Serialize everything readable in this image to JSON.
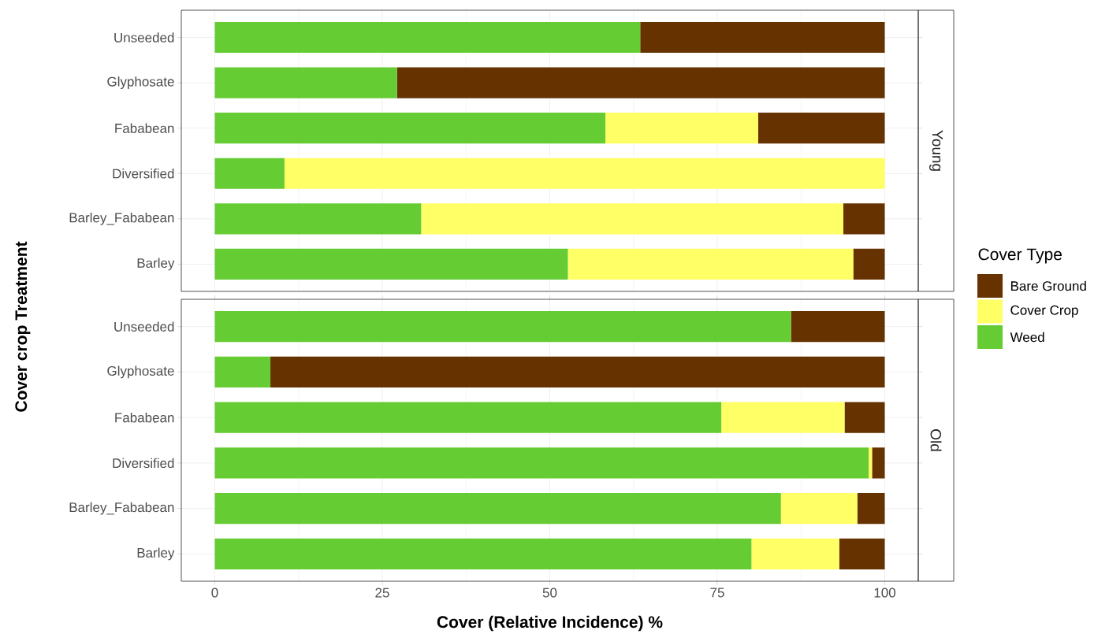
{
  "chart_data": [
    {
      "type": "bar",
      "orientation": "horizontal",
      "stacked": true,
      "annotations": [
        "Young"
      ],
      "ylabel": "Cover crop Treatment",
      "legend_title": "Cover Type",
      "legend": "right",
      "grid": true,
      "tick_labels": "y",
      "categories": [
        "Unseeded",
        "Glyphosate",
        "Fababean",
        "Diversified",
        "Barley_Fababean",
        "Barley"
      ],
      "xlim": [
        -5,
        105
      ],
      "xticks": [
        0,
        25,
        50,
        75,
        100
      ],
      "series": [
        {
          "name": "Weed",
          "color": "#66cc33",
          "values": [
            63.5,
            27.2,
            58.3,
            10.4,
            30.8,
            52.7
          ]
        },
        {
          "name": "Cover Crop",
          "color": "#ffff66",
          "values": [
            0,
            0,
            22.8,
            89.6,
            63.0,
            42.6
          ]
        },
        {
          "name": "Bare Ground",
          "color": "#663300",
          "values": [
            36.5,
            72.8,
            18.9,
            0,
            6.2,
            4.7
          ]
        }
      ]
    },
    {
      "type": "bar",
      "orientation": "horizontal",
      "stacked": true,
      "annotations": [
        "Old"
      ],
      "xlabel": "Cover (Relative Incidence) %",
      "grid": true,
      "categories": [
        "Unseeded",
        "Glyphosate",
        "Fababean",
        "Diversified",
        "Barley_Fababean",
        "Barley"
      ],
      "xlim": [
        -5,
        105
      ],
      "xticks": [
        0,
        25,
        50,
        75,
        100
      ],
      "series": [
        {
          "color": "#66cc33",
          "values": [
            86.0,
            8.3,
            75.6,
            97.6,
            84.5,
            80.1
          ]
        },
        {
          "color": "#ffff66",
          "values": [
            0,
            0,
            18.4,
            0.5,
            11.4,
            13.1
          ]
        },
        {
          "color": "#663300",
          "values": [
            14.0,
            91.7,
            6.0,
            1.9,
            4.1,
            6.8
          ]
        }
      ]
    }
  ]
}
